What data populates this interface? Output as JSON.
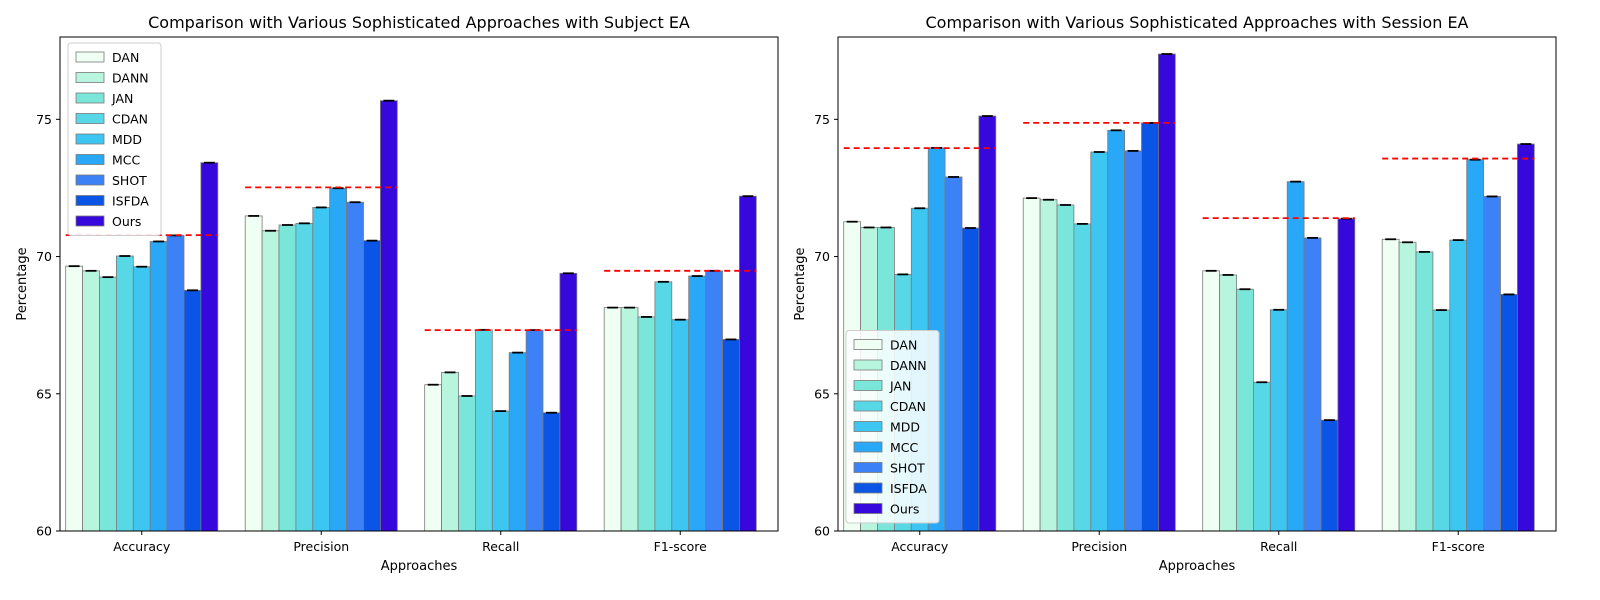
{
  "chart_data": [
    {
      "type": "bar",
      "title": "Comparison with Various Sophisticated Approaches with Subject EA",
      "xlabel": "Approaches",
      "ylabel": "Percentage",
      "ylim": [
        60,
        78
      ],
      "yticks": [
        "60",
        "65",
        "70",
        "75"
      ],
      "categories": [
        "Accuracy",
        "Precision",
        "Recall",
        "F1-score"
      ],
      "legend_position": "upper-left",
      "series": [
        {
          "name": "DAN",
          "color": "#f0fff4",
          "values": [
            69.65,
            71.48,
            65.33,
            68.14
          ]
        },
        {
          "name": "DANN",
          "color": "#b8f5de",
          "values": [
            69.48,
            70.94,
            65.78,
            68.14
          ]
        },
        {
          "name": "JAN",
          "color": "#7ae6da",
          "values": [
            69.25,
            71.15,
            64.92,
            67.8
          ]
        },
        {
          "name": "CDAN",
          "color": "#58d8e6",
          "values": [
            70.02,
            71.21,
            67.33,
            69.08
          ]
        },
        {
          "name": "MDD",
          "color": "#3ec6f2",
          "values": [
            69.63,
            71.79,
            64.37,
            67.7
          ]
        },
        {
          "name": "MCC",
          "color": "#2aa8f8",
          "values": [
            70.55,
            72.49,
            66.5,
            69.29
          ]
        },
        {
          "name": "SHOT",
          "color": "#3c82f6",
          "values": [
            70.77,
            71.98,
            67.32,
            69.48
          ]
        },
        {
          "name": "ISFDA",
          "color": "#0a55e6",
          "values": [
            68.77,
            70.58,
            64.31,
            66.98
          ]
        },
        {
          "name": "Ours",
          "color": "#3608dc",
          "values": [
            73.42,
            75.68,
            69.39,
            72.2
          ]
        }
      ],
      "reference_lines": [
        70.78,
        72.52,
        67.32,
        69.48
      ]
    },
    {
      "type": "bar",
      "title": "Comparison with Various Sophisticated Approaches with Session EA",
      "xlabel": "Approaches",
      "ylabel": "Percentage",
      "ylim": [
        60,
        78
      ],
      "yticks": [
        "60",
        "65",
        "70",
        "75"
      ],
      "categories": [
        "Accuracy",
        "Precision",
        "Recall",
        "F1-score"
      ],
      "legend_position": "lower-left",
      "series": [
        {
          "name": "DAN",
          "color": "#f0fff4",
          "values": [
            71.27,
            72.13,
            69.48,
            70.63
          ]
        },
        {
          "name": "DANN",
          "color": "#b8f5de",
          "values": [
            71.06,
            72.07,
            69.33,
            70.52
          ]
        },
        {
          "name": "JAN",
          "color": "#7ae6da",
          "values": [
            71.06,
            71.88,
            68.81,
            70.17
          ]
        },
        {
          "name": "CDAN",
          "color": "#58d8e6",
          "values": [
            69.35,
            71.19,
            65.42,
            68.05
          ]
        },
        {
          "name": "MDD",
          "color": "#3ec6f2",
          "values": [
            71.76,
            73.81,
            68.06,
            70.6
          ]
        },
        {
          "name": "MCC",
          "color": "#2aa8f8",
          "values": [
            73.96,
            74.6,
            72.73,
            73.53
          ]
        },
        {
          "name": "SHOT",
          "color": "#3c82f6",
          "values": [
            72.9,
            73.85,
            70.68,
            72.19
          ]
        },
        {
          "name": "ISFDA",
          "color": "#0a55e6",
          "values": [
            71.04,
            74.87,
            64.04,
            68.62
          ]
        },
        {
          "name": "Ours",
          "color": "#3608dc",
          "values": [
            75.12,
            77.38,
            71.38,
            74.1
          ]
        }
      ],
      "reference_lines": [
        73.95,
        74.87,
        71.4,
        73.57
      ]
    }
  ]
}
